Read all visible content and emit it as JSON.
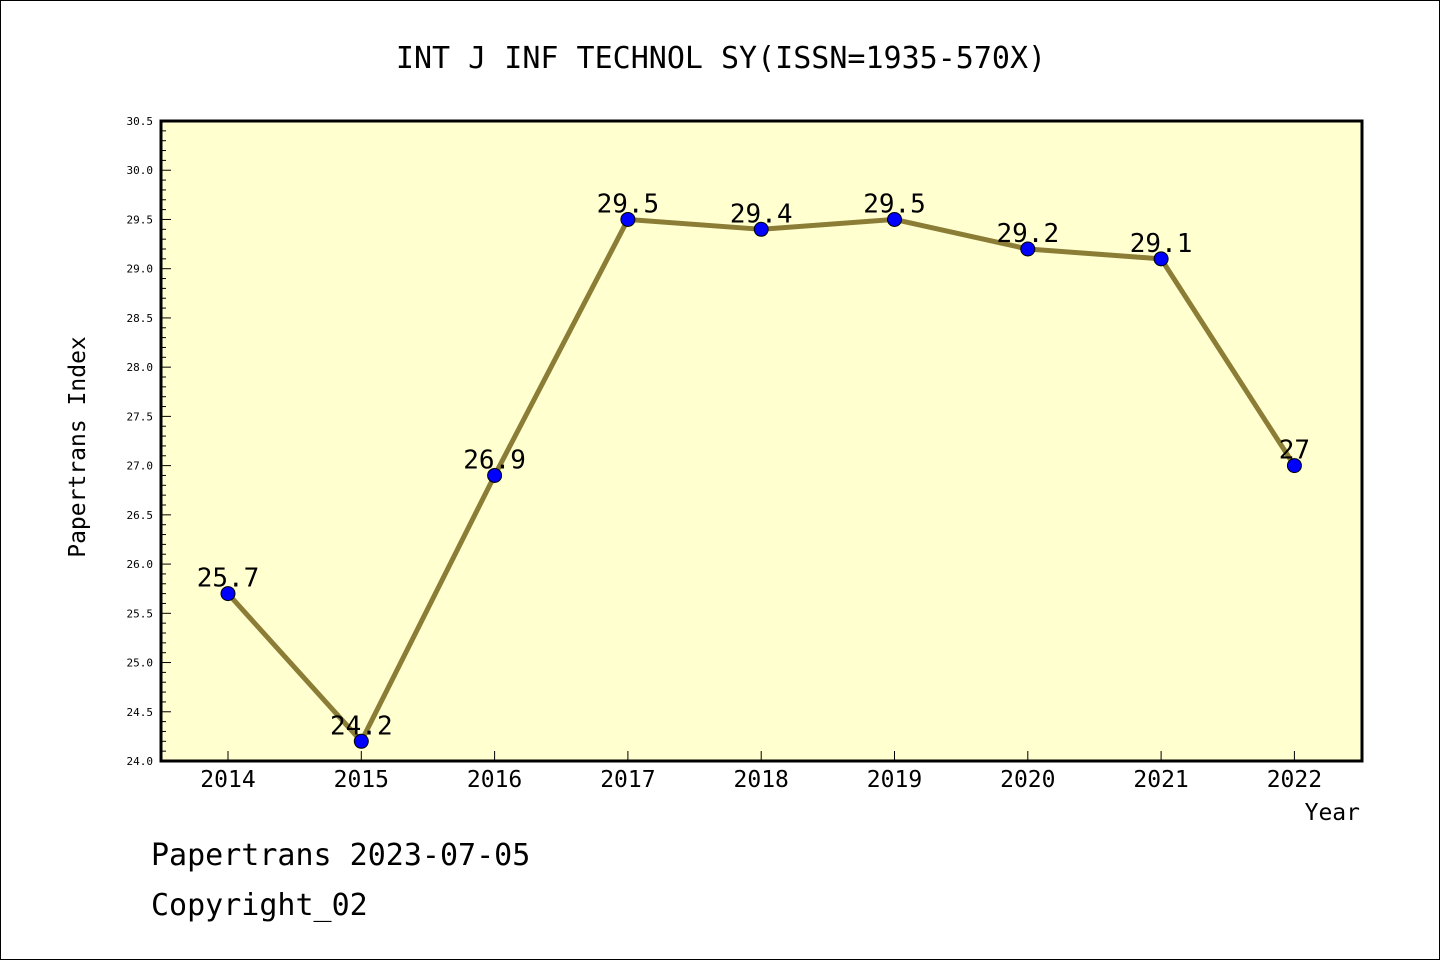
{
  "chart_data": {
    "type": "line",
    "title": "INT J INF TECHNOL SY(ISSN=1935-570X)",
    "xlabel": "Year",
    "ylabel": "Papertrans Index",
    "categories": [
      "2014",
      "2015",
      "2016",
      "2017",
      "2018",
      "2019",
      "2020",
      "2021",
      "2022"
    ],
    "values": [
      25.7,
      24.2,
      26.9,
      29.5,
      29.4,
      29.5,
      29.2,
      29.1,
      27.0
    ],
    "data_labels": [
      "25.7",
      "24.2",
      "26.9",
      "29.5",
      "29.4",
      "29.5",
      "29.2",
      "29.1",
      "27"
    ],
    "ylim": [
      24.0,
      30.5
    ],
    "yticks": [
      "24.0",
      "24.5",
      "25.0",
      "25.5",
      "26.0",
      "26.5",
      "27.0",
      "27.5",
      "28.0",
      "28.5",
      "29.0",
      "29.5",
      "30.0",
      "30.5"
    ],
    "grid": false,
    "colors": {
      "plot_background": "#ffffd0",
      "line": "#8b7d35",
      "marker": "#0000ff"
    }
  },
  "footer": {
    "line1": "Papertrans 2023-07-05",
    "line2": "Copyright_02"
  }
}
